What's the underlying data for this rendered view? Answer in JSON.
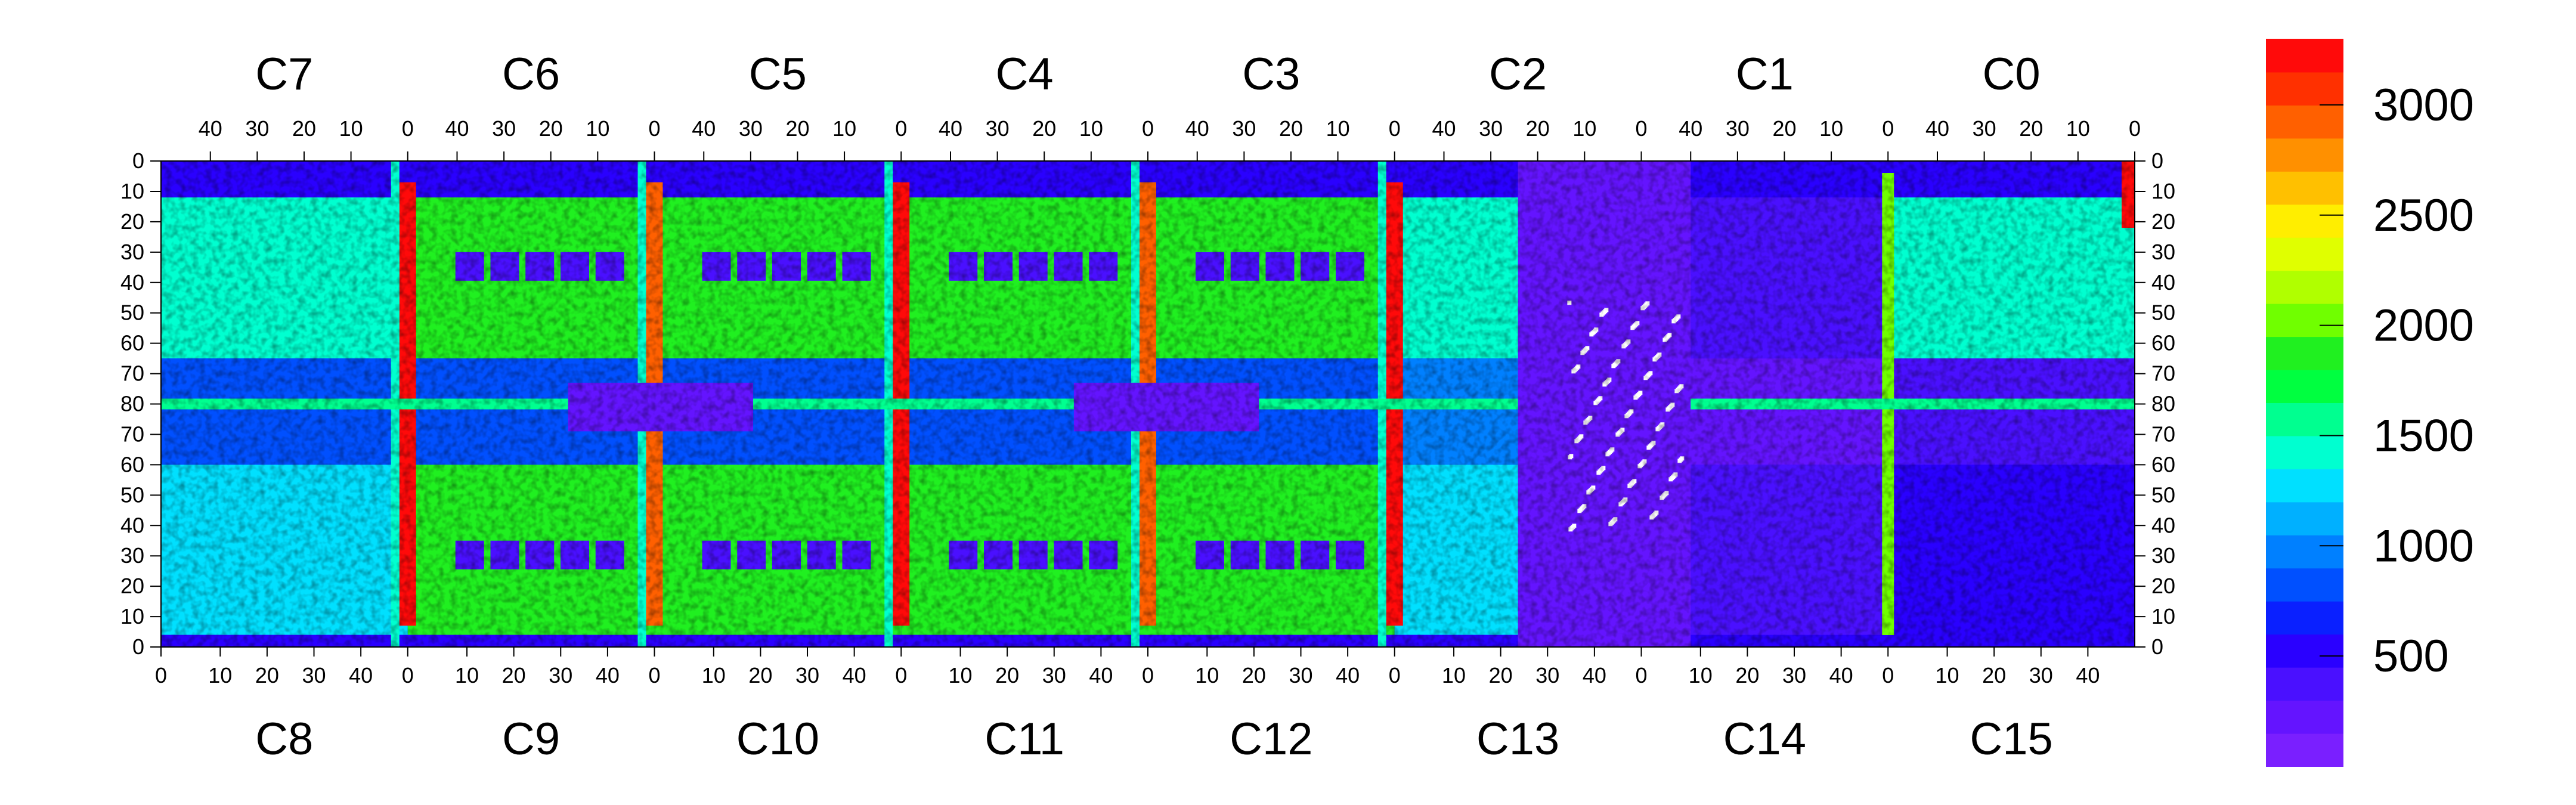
{
  "chart_data": {
    "type": "heatmap",
    "title": "",
    "top_labels": [
      "C7",
      "C6",
      "C5",
      "C4",
      "C3",
      "C2",
      "C1",
      "C0"
    ],
    "bottom_labels": [
      "C8",
      "C9",
      "C10",
      "C11",
      "C12",
      "C13",
      "C14",
      "C15"
    ],
    "top_axis_ticks": [
      "40",
      "30",
      "20",
      "10",
      "0"
    ],
    "bottom_axis_ticks": [
      "0",
      "10",
      "20",
      "30",
      "40"
    ],
    "left_axis_ticks": [
      "0",
      "10",
      "20",
      "30",
      "40",
      "50",
      "60",
      "70",
      "80",
      "70",
      "60",
      "50",
      "40",
      "30",
      "20",
      "10",
      "0"
    ],
    "right_axis_ticks": [
      "0",
      "10",
      "20",
      "30",
      "40",
      "50",
      "60",
      "70",
      "80",
      "70",
      "60",
      "50",
      "40",
      "30",
      "20",
      "10",
      "0"
    ],
    "colorbar": {
      "min": 0,
      "max": 3300,
      "ticks": [
        500,
        1000,
        1500,
        2000,
        2500,
        3000
      ],
      "tick_labels": [
        "500",
        "1000",
        "1500",
        "2000",
        "2500",
        "3000"
      ],
      "palette": [
        "#7a1fff",
        "#6414ff",
        "#4a10ff",
        "#2a00ff",
        "#0a20ff",
        "#0050ff",
        "#0080ff",
        "#00b0ff",
        "#00e0ff",
        "#00ffd0",
        "#00ff90",
        "#00ff40",
        "#20f020",
        "#70ff00",
        "#b0ff00",
        "#e0ff00",
        "#ffee00",
        "#ffc000",
        "#ff9000",
        "#ff6000",
        "#ff3000",
        "#ff0a0a"
      ]
    },
    "grid": false,
    "legend": "colorbar-right"
  }
}
